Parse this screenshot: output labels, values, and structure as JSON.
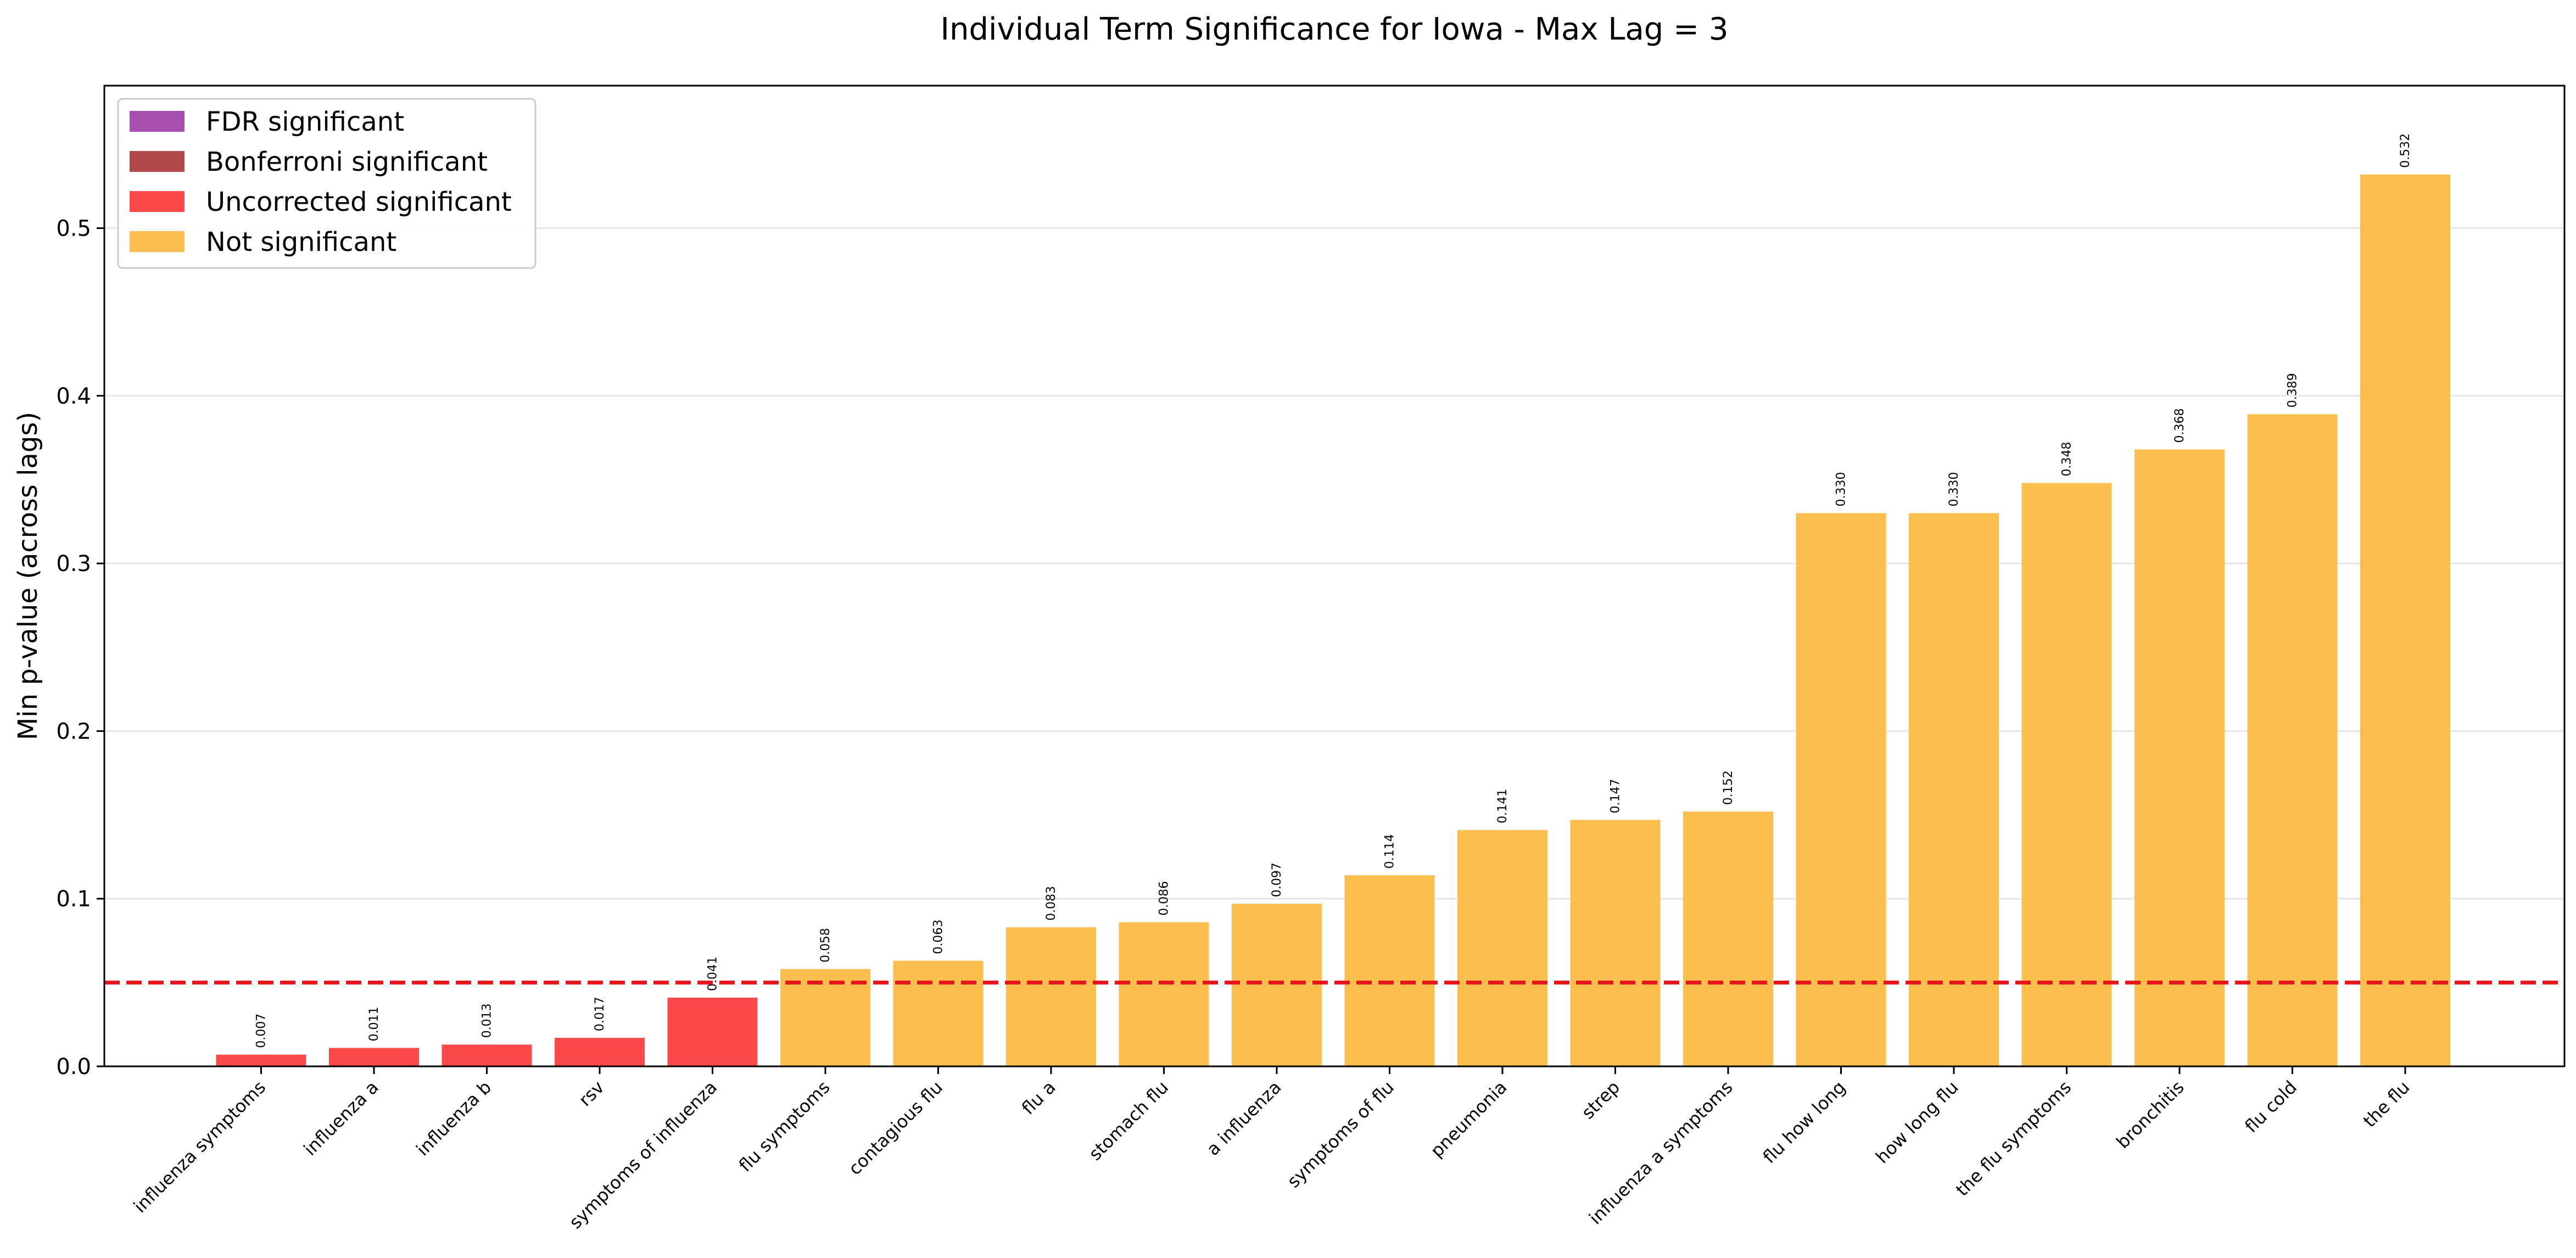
{
  "chart_data": {
    "type": "bar",
    "title": "Individual Term Significance for Iowa - Max Lag = 3",
    "xlabel": "",
    "ylabel": "Min p-value (across lags)",
    "ylim": [
      0,
      0.585
    ],
    "yticks": [
      "0.0",
      "0.1",
      "0.2",
      "0.3",
      "0.4",
      "0.5"
    ],
    "grid": "horizontal",
    "threshold": 0.05,
    "legend_position": "top-left",
    "legend": [
      {
        "label": "FDR significant",
        "color": "#a64fb0"
      },
      {
        "label": "Bonferroni significant",
        "color": "#b04848"
      },
      {
        "label": "Uncorrected significant",
        "color": "#fc4a4c"
      },
      {
        "label": "Not significant",
        "color": "#fcbe4c"
      }
    ],
    "colors": {
      "uncorrected": "#fc4a4c",
      "not_significant": "#fcbe4c",
      "threshold_line": "#e8141c"
    },
    "categories": [
      "influenza symptoms",
      "influenza a",
      "influenza b",
      "rsv",
      "symptoms of influenza",
      "flu symptoms",
      "contagious flu",
      "flu a",
      "stomach flu",
      "a influenza",
      "symptoms of flu",
      "pneumonia",
      "strep",
      "influenza a symptoms",
      "flu how long",
      "how long flu",
      "the flu symptoms",
      "bronchitis",
      "flu cold",
      "the flu"
    ],
    "values": [
      0.007,
      0.011,
      0.013,
      0.017,
      0.041,
      0.058,
      0.063,
      0.083,
      0.086,
      0.097,
      0.114,
      0.141,
      0.147,
      0.152,
      0.33,
      0.33,
      0.348,
      0.368,
      0.389,
      0.532
    ],
    "value_labels": [
      "0.007",
      "0.011",
      "0.013",
      "0.017",
      "0.041",
      "0.058",
      "0.063",
      "0.083",
      "0.086",
      "0.097",
      "0.114",
      "0.141",
      "0.147",
      "0.152",
      "0.330",
      "0.330",
      "0.348",
      "0.368",
      "0.389",
      "0.532"
    ],
    "significance": [
      "uncorrected",
      "uncorrected",
      "uncorrected",
      "uncorrected",
      "uncorrected",
      "not_significant",
      "not_significant",
      "not_significant",
      "not_significant",
      "not_significant",
      "not_significant",
      "not_significant",
      "not_significant",
      "not_significant",
      "not_significant",
      "not_significant",
      "not_significant",
      "not_significant",
      "not_significant",
      "not_significant"
    ]
  }
}
